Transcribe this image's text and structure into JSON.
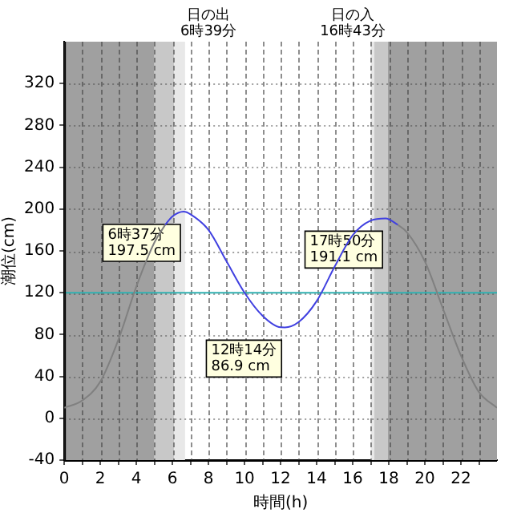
{
  "chart_data": {
    "type": "line",
    "xlabel": "時間(h)",
    "ylabel": "潮位(cm)",
    "xlim": [
      0,
      24
    ],
    "ylim": [
      -40,
      360
    ],
    "xticks": [
      0,
      {
        "value": 1,
        "label": null
      },
      2,
      {
        "value": 3,
        "label": null
      },
      4,
      {
        "value": 5,
        "label": null
      },
      6,
      {
        "value": 7,
        "label": null
      },
      8,
      {
        "value": 9,
        "label": null
      },
      10,
      {
        "value": 11,
        "label": null
      },
      12,
      {
        "value": 13,
        "label": null
      },
      14,
      {
        "value": 15,
        "label": null
      },
      16,
      {
        "value": 17,
        "label": null
      },
      18,
      {
        "value": 19,
        "label": null
      },
      20,
      {
        "value": 21,
        "label": null
      },
      22,
      {
        "value": 23,
        "label": null
      }
    ],
    "yticks": [
      -40,
      0,
      40,
      80,
      120,
      160,
      200,
      240,
      280,
      320
    ],
    "grid": true,
    "legend": false,
    "marker": "none",
    "line_style": "solid",
    "series": [
      {
        "color": "#808080",
        "x": [
          0,
          1,
          2,
          3,
          4,
          5,
          5.6,
          12,
          18.5,
          19,
          20,
          21,
          22,
          23,
          24
        ],
        "values": [
          10,
          17,
          35,
          75,
          126,
          168,
          185,
          null,
          185,
          178,
          150,
          105,
          60,
          25,
          10
        ]
      },
      {
        "color": "#4040e0",
        "x": [
          5.6,
          6,
          6.62,
          7,
          8,
          9,
          10,
          11,
          12,
          12.23,
          13,
          14,
          15,
          16,
          17,
          17.83,
          18.5
        ],
        "values": [
          185,
          193,
          197.5,
          195,
          180,
          150,
          120,
          98,
          87,
          86.9,
          92,
          112,
          145,
          175,
          189,
          191.1,
          185
        ]
      }
    ],
    "ref_lines": [
      {
        "axis": "y",
        "value": 120,
        "color": "#30b0b0"
      }
    ],
    "bands": [
      {
        "axis": "x",
        "from": 0,
        "to": 5.0,
        "color": "#a0a0a0"
      },
      {
        "axis": "x",
        "from": 5.0,
        "to": 6.1,
        "color": "#c8c8c8"
      },
      {
        "axis": "x",
        "from": 6.1,
        "to": 6.7,
        "color": "#e8e8e8"
      },
      {
        "axis": "x",
        "from": 17.0,
        "to": 17.2,
        "color": "#e8e8e8"
      },
      {
        "axis": "x",
        "from": 17.2,
        "to": 17.95,
        "color": "#c8c8c8"
      },
      {
        "axis": "x",
        "from": 17.95,
        "to": 24,
        "color": "#a0a0a0"
      }
    ],
    "annotations": [
      "日の出\n6時39分",
      "日の入\n16時43分",
      {
        "text": "6時37分\n197.5 cm",
        "x": 6.62,
        "y": 197.5
      },
      {
        "text": "12時14分\n86.9 cm",
        "x": 12.23,
        "y": 86.9
      },
      {
        "text": "17時50分\n191.1 cm",
        "x": 17.83,
        "y": 191.1
      }
    ]
  }
}
